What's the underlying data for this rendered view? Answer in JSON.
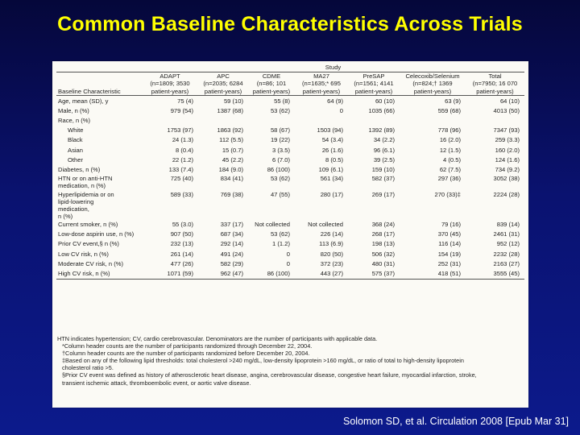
{
  "slide": {
    "title": "Common Baseline Characteristics Across Trials",
    "citation": "Solomon SD, et al. Circulation 2008 [Epub Mar 31]",
    "background": "#0a1270",
    "title_color": "#ffff00"
  },
  "table": {
    "study_header": "Study",
    "label_header": "Baseline Characteristic",
    "columns": [
      [
        "ADAPT",
        "(n=1809; 3530",
        "patient-years)"
      ],
      [
        "APC",
        "(n=2035; 6284",
        "patient-years)"
      ],
      [
        "CDME",
        "(n=86; 101",
        "patient-years)"
      ],
      [
        "MA27",
        "(n=1635;* 695",
        "patient-years)"
      ],
      [
        "PreSAP",
        "(n=1561; 4141",
        "patient-years)"
      ],
      [
        "Celecoxib/Selenium",
        "(n=824;† 1369",
        "patient-years)"
      ],
      [
        "Total",
        "(n=7950; 16 070",
        "patient-years)"
      ]
    ],
    "rows": [
      {
        "label": "Age, mean (SD), y",
        "values": [
          "75 (4)",
          "59 (10)",
          "55 (8)",
          "64 (9)",
          "60 (10)",
          "63 (9)",
          "64 (10)"
        ]
      },
      {
        "label": "Male, n (%)",
        "values": [
          "979 (54)",
          "1387 (68)",
          "53 (62)",
          "0",
          "1035 (66)",
          "559 (68)",
          "4013 (50)"
        ]
      },
      {
        "label": "Race, n (%)",
        "values": [
          "",
          "",
          "",
          "",
          "",
          "",
          ""
        ]
      },
      {
        "label": "White",
        "indent": true,
        "values": [
          "1753 (97)",
          "1863 (92)",
          "58 (67)",
          "1503 (94)",
          "1392 (89)",
          "778 (96)",
          "7347 (93)"
        ]
      },
      {
        "label": "Black",
        "indent": true,
        "values": [
          "24 (1.3)",
          "112 (5.5)",
          "19 (22)",
          "54 (3.4)",
          "34 (2.2)",
          "16 (2.0)",
          "259 (3.3)"
        ]
      },
      {
        "label": "Asian",
        "indent": true,
        "values": [
          "8 (0.4)",
          "15 (0.7)",
          "3 (3.5)",
          "26 (1.6)",
          "96 (6.1)",
          "12 (1.5)",
          "160 (2.0)"
        ]
      },
      {
        "label": "Other",
        "indent": true,
        "values": [
          "22 (1.2)",
          "45 (2.2)",
          "6 (7.0)",
          "8 (0.5)",
          "39 (2.5)",
          "4 (0.5)",
          "124 (1.6)"
        ]
      },
      {
        "label": "Diabetes, n (%)",
        "values": [
          "133 (7.4)",
          "184 (9.0)",
          "86 (100)",
          "109 (6.1)",
          "159 (10)",
          "62 (7.5)",
          "734 (9.2)"
        ]
      },
      {
        "label": "HTN or on anti-HTN medication, n (%)",
        "lines": [
          "HTN or on anti-HTN",
          "medication, n (%)"
        ],
        "values": [
          "725 (40)",
          "834 (41)",
          "53 (62)",
          "561 (34)",
          "582 (37)",
          "297 (36)",
          "3052 (38)"
        ]
      },
      {
        "label": "Hyperlipidemia or on lipid-lowering medication, n (%)",
        "lines": [
          "Hyperlipidemia or on",
          "lipid-lowering",
          "medication,",
          "n (%)"
        ],
        "values": [
          "589 (33)",
          "769 (38)",
          "47 (55)",
          "280 (17)",
          "269 (17)",
          "270 (33)‡",
          "2224 (28)"
        ]
      },
      {
        "label": "Current smoker, n (%)",
        "values": [
          "55 (3.0)",
          "337 (17)",
          "Not collected",
          "Not collected",
          "368 (24)",
          "79 (16)",
          "839 (14)"
        ]
      },
      {
        "label": "Low-dose aspirin use, n (%)",
        "values": [
          "907 (50)",
          "687 (34)",
          "53 (62)",
          "226 (14)",
          "268 (17)",
          "370 (45)",
          "2461 (31)"
        ]
      },
      {
        "label": "Prior CV event,§ n (%)",
        "values": [
          "232 (13)",
          "292 (14)",
          "1 (1.2)",
          "113 (6.9)",
          "198 (13)",
          "116 (14)",
          "952 (12)"
        ]
      },
      {
        "label": "Low CV risk, n (%)",
        "values": [
          "261 (14)",
          "491 (24)",
          "0",
          "820 (50)",
          "506 (32)",
          "154 (19)",
          "2232 (28)"
        ]
      },
      {
        "label": "Moderate CV risk, n (%)",
        "values": [
          "477 (26)",
          "582 (29)",
          "0",
          "372 (23)",
          "480 (31)",
          "252 (31)",
          "2163 (27)"
        ]
      },
      {
        "label": "High CV risk, n (%)",
        "values": [
          "1071 (59)",
          "962 (47)",
          "86 (100)",
          "443 (27)",
          "575 (37)",
          "418 (51)",
          "3555 (45)"
        ]
      }
    ],
    "notes": [
      "HTN indicates hypertension; CV, cardio cerebrovascular. Denominators are the number of participants with applicable data.",
      "*Column header counts are the number of participants randomized through December 22, 2004.",
      "†Column header counts are the number of participants randomized before December 20, 2004.",
      "‡Based on any of the following lipid thresholds: total cholesterol >240 mg/dL, low-density lipoprotein >160 mg/dL, or ratio of total to high-density lipoprotein",
      "cholesterol ratio >5.",
      "§Prior CV event was defined as history of atherosclerotic heart disease, angina, cerebrovascular disease, congestive heart failure, myocardial infarction, stroke,",
      "transient ischemic attack, thromboembolic event, or aortic valve disease."
    ]
  }
}
